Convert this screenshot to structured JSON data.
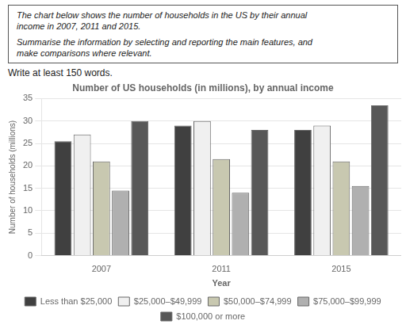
{
  "chart_data": {
    "type": "bar",
    "title": "Number of US households (in millions), by annual income",
    "xlabel": "Year",
    "ylabel": "Number of households (millions)",
    "annotations": [
      "The chart below shows the number of households in the US by their annual",
      "income in 2007, 2011 and 2015.",
      "Summarise the information by selecting and reporting the main features, and",
      "make comparisons where relevant.",
      "Write at least 150 words."
    ],
    "categories": [
      "2007",
      "2011",
      "2015"
    ],
    "series": [
      {
        "name": "Less than $25,000",
        "color": "#404040",
        "values": [
          25.5,
          29.0,
          28.0
        ]
      },
      {
        "name": "$25,000–$49,999",
        "color": "#f0f0f0",
        "values": [
          27.0,
          30.0,
          29.0
        ]
      },
      {
        "name": "$50,000–$74,999",
        "color": "#c8c8b0",
        "values": [
          21.0,
          21.5,
          21.0
        ]
      },
      {
        "name": "$75,000–$99,999",
        "color": "#b0b0b0",
        "values": [
          14.5,
          14.0,
          15.5
        ]
      },
      {
        "name": "$100,000 or more",
        "color": "#585858",
        "values": [
          30.0,
          28.0,
          33.5
        ]
      }
    ],
    "ylim": [
      0,
      35
    ],
    "yticks": [
      0,
      5,
      10,
      15,
      20,
      25,
      30,
      35
    ],
    "grid": true,
    "legend": "bottom"
  }
}
